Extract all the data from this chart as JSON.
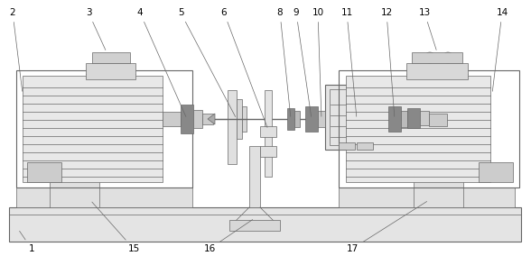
{
  "fig_width": 5.88,
  "fig_height": 2.84,
  "dpi": 100,
  "bg_color": "#ffffff",
  "lc": "#666666",
  "fc_light": "#e8e8e8",
  "fc_mid": "#cccccc",
  "fc_dark": "#999999",
  "fc_darker": "#777777",
  "fc_base": "#d8d8d8",
  "label_fontsize": 7.5
}
